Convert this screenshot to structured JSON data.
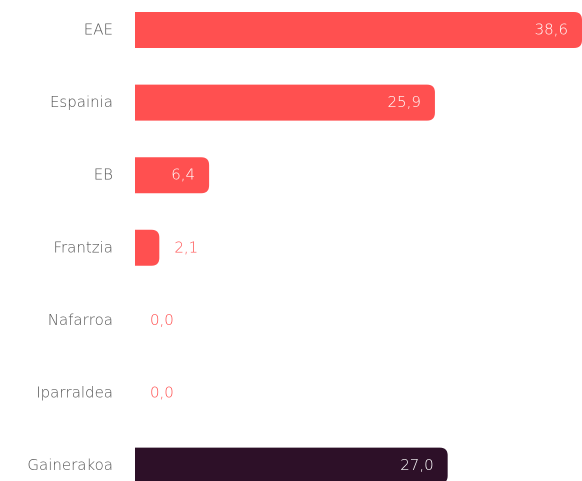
{
  "chart_data": {
    "type": "bar",
    "orientation": "horizontal",
    "categories": [
      "EAE",
      "Espainia",
      "EB",
      "Frantzia",
      "Nafarroa",
      "Iparraldea",
      "Gainerakoa"
    ],
    "values": [
      38.6,
      25.9,
      6.4,
      2.1,
      0.0,
      0.0,
      27.0
    ],
    "value_labels": [
      "38,6",
      "25,9",
      "6,4",
      "2,1",
      "0,0",
      "0,0",
      "27,0"
    ],
    "colors": [
      "#ff5050",
      "#ff5050",
      "#ff5050",
      "#ff5050",
      "#ff5050",
      "#ff5050",
      "#2d1028"
    ]
  }
}
